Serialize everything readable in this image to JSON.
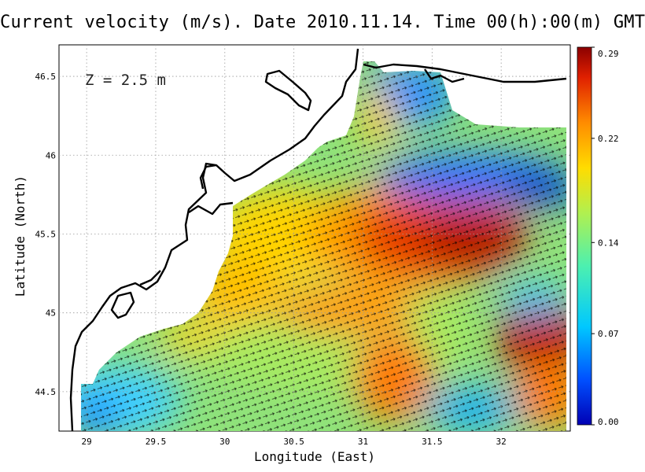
{
  "title": "Current velocity (m/s). Date 2010.11.14. Time 00(h):00(m) GMT",
  "depth_label": "Z = 2.5 m",
  "axes": {
    "xlabel": "Longitude (East)",
    "ylabel": "Latitude (North)",
    "xticks": [
      "29",
      "29.5",
      "30",
      "30.5",
      "31",
      "31.5",
      "32"
    ],
    "yticks": [
      "44.5",
      "45",
      "45.5",
      "46",
      "46.5"
    ],
    "xlim": [
      28.8,
      32.5
    ],
    "ylim": [
      44.25,
      46.7
    ],
    "grid": true
  },
  "colorbar": {
    "ticks": [
      "0.00",
      "0.07",
      "0.14",
      "0.22",
      "0.29"
    ],
    "range": [
      0.0,
      0.29
    ],
    "colormap": "jet",
    "colors": [
      "#0000b4",
      "#0050ff",
      "#00c8ff",
      "#4cf0b0",
      "#b0f050",
      "#ffdc00",
      "#ff8c00",
      "#e02000",
      "#8c0000"
    ]
  },
  "map_colors": {
    "land": "#ffffff",
    "coastline": "#000000",
    "arrows": "#000000"
  }
}
